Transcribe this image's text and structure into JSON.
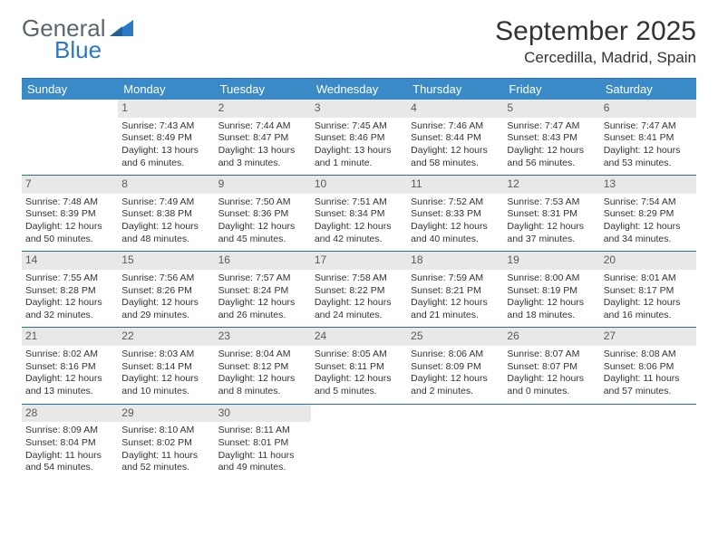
{
  "logo": {
    "text1": "General",
    "text2": "Blue"
  },
  "title": "September 2025",
  "location": "Cercedilla, Madrid, Spain",
  "colors": {
    "header_bg": "#3a8ac8",
    "header_text": "#ffffff",
    "rule": "#2b6da8",
    "daynum_bg": "#e8e8e8",
    "logo_gray": "#5b6770",
    "logo_blue": "#2b78c4"
  },
  "day_names": [
    "Sunday",
    "Monday",
    "Tuesday",
    "Wednesday",
    "Thursday",
    "Friday",
    "Saturday"
  ],
  "weeks": [
    [
      {
        "n": "",
        "sr": "",
        "ss": "",
        "dl": ""
      },
      {
        "n": "1",
        "sr": "7:43 AM",
        "ss": "8:49 PM",
        "dl": "13 hours and 6 minutes."
      },
      {
        "n": "2",
        "sr": "7:44 AM",
        "ss": "8:47 PM",
        "dl": "13 hours and 3 minutes."
      },
      {
        "n": "3",
        "sr": "7:45 AM",
        "ss": "8:46 PM",
        "dl": "13 hours and 1 minute."
      },
      {
        "n": "4",
        "sr": "7:46 AM",
        "ss": "8:44 PM",
        "dl": "12 hours and 58 minutes."
      },
      {
        "n": "5",
        "sr": "7:47 AM",
        "ss": "8:43 PM",
        "dl": "12 hours and 56 minutes."
      },
      {
        "n": "6",
        "sr": "7:47 AM",
        "ss": "8:41 PM",
        "dl": "12 hours and 53 minutes."
      }
    ],
    [
      {
        "n": "7",
        "sr": "7:48 AM",
        "ss": "8:39 PM",
        "dl": "12 hours and 50 minutes."
      },
      {
        "n": "8",
        "sr": "7:49 AM",
        "ss": "8:38 PM",
        "dl": "12 hours and 48 minutes."
      },
      {
        "n": "9",
        "sr": "7:50 AM",
        "ss": "8:36 PM",
        "dl": "12 hours and 45 minutes."
      },
      {
        "n": "10",
        "sr": "7:51 AM",
        "ss": "8:34 PM",
        "dl": "12 hours and 42 minutes."
      },
      {
        "n": "11",
        "sr": "7:52 AM",
        "ss": "8:33 PM",
        "dl": "12 hours and 40 minutes."
      },
      {
        "n": "12",
        "sr": "7:53 AM",
        "ss": "8:31 PM",
        "dl": "12 hours and 37 minutes."
      },
      {
        "n": "13",
        "sr": "7:54 AM",
        "ss": "8:29 PM",
        "dl": "12 hours and 34 minutes."
      }
    ],
    [
      {
        "n": "14",
        "sr": "7:55 AM",
        "ss": "8:28 PM",
        "dl": "12 hours and 32 minutes."
      },
      {
        "n": "15",
        "sr": "7:56 AM",
        "ss": "8:26 PM",
        "dl": "12 hours and 29 minutes."
      },
      {
        "n": "16",
        "sr": "7:57 AM",
        "ss": "8:24 PM",
        "dl": "12 hours and 26 minutes."
      },
      {
        "n": "17",
        "sr": "7:58 AM",
        "ss": "8:22 PM",
        "dl": "12 hours and 24 minutes."
      },
      {
        "n": "18",
        "sr": "7:59 AM",
        "ss": "8:21 PM",
        "dl": "12 hours and 21 minutes."
      },
      {
        "n": "19",
        "sr": "8:00 AM",
        "ss": "8:19 PM",
        "dl": "12 hours and 18 minutes."
      },
      {
        "n": "20",
        "sr": "8:01 AM",
        "ss": "8:17 PM",
        "dl": "12 hours and 16 minutes."
      }
    ],
    [
      {
        "n": "21",
        "sr": "8:02 AM",
        "ss": "8:16 PM",
        "dl": "12 hours and 13 minutes."
      },
      {
        "n": "22",
        "sr": "8:03 AM",
        "ss": "8:14 PM",
        "dl": "12 hours and 10 minutes."
      },
      {
        "n": "23",
        "sr": "8:04 AM",
        "ss": "8:12 PM",
        "dl": "12 hours and 8 minutes."
      },
      {
        "n": "24",
        "sr": "8:05 AM",
        "ss": "8:11 PM",
        "dl": "12 hours and 5 minutes."
      },
      {
        "n": "25",
        "sr": "8:06 AM",
        "ss": "8:09 PM",
        "dl": "12 hours and 2 minutes."
      },
      {
        "n": "26",
        "sr": "8:07 AM",
        "ss": "8:07 PM",
        "dl": "12 hours and 0 minutes."
      },
      {
        "n": "27",
        "sr": "8:08 AM",
        "ss": "8:06 PM",
        "dl": "11 hours and 57 minutes."
      }
    ],
    [
      {
        "n": "28",
        "sr": "8:09 AM",
        "ss": "8:04 PM",
        "dl": "11 hours and 54 minutes."
      },
      {
        "n": "29",
        "sr": "8:10 AM",
        "ss": "8:02 PM",
        "dl": "11 hours and 52 minutes."
      },
      {
        "n": "30",
        "sr": "8:11 AM",
        "ss": "8:01 PM",
        "dl": "11 hours and 49 minutes."
      },
      {
        "n": "",
        "sr": "",
        "ss": "",
        "dl": ""
      },
      {
        "n": "",
        "sr": "",
        "ss": "",
        "dl": ""
      },
      {
        "n": "",
        "sr": "",
        "ss": "",
        "dl": ""
      },
      {
        "n": "",
        "sr": "",
        "ss": "",
        "dl": ""
      }
    ]
  ],
  "labels": {
    "sunrise": "Sunrise:",
    "sunset": "Sunset:",
    "daylight": "Daylight:"
  }
}
